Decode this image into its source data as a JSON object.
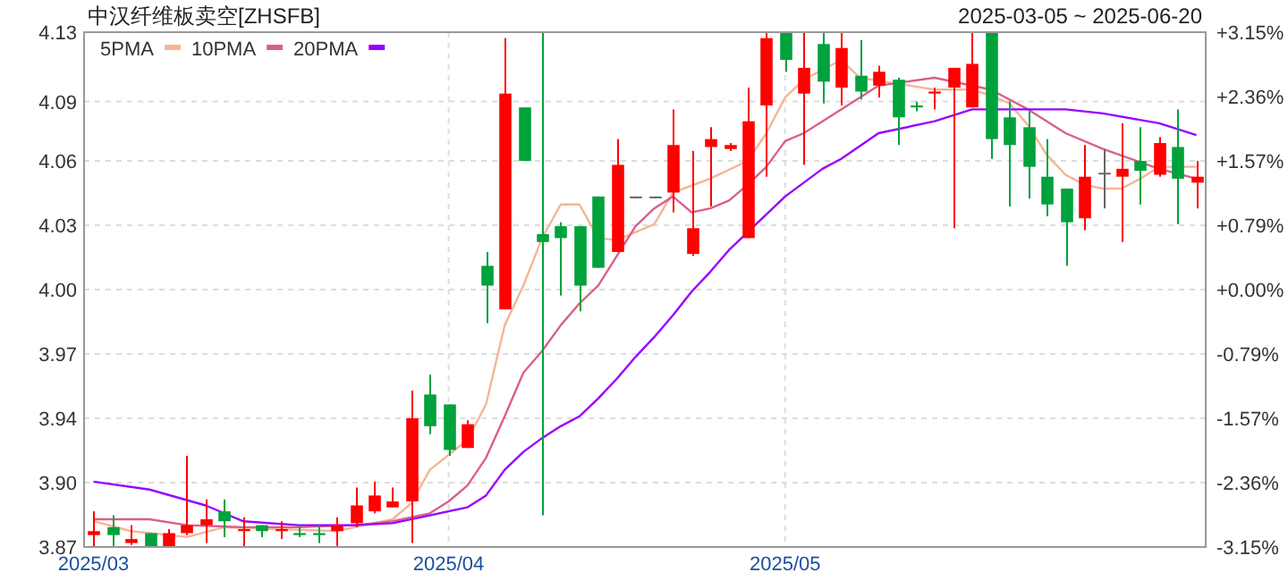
{
  "chart_data": {
    "type": "candlestick",
    "title": "中汉纤维板卖空[ZHSFB]",
    "subtitle": "2025-03-05 ~ 2025-06-20",
    "categories": [
      "2025/03",
      null,
      null,
      null,
      null,
      null,
      null,
      null,
      null,
      null,
      null,
      null,
      null,
      null,
      null,
      null,
      null,
      null,
      null,
      "2025/04",
      null,
      null,
      null,
      null,
      null,
      null,
      null,
      null,
      null,
      null,
      null,
      null,
      null,
      null,
      null,
      null,
      null,
      "2025/05",
      null,
      null,
      null,
      null,
      null,
      null,
      null,
      null,
      null,
      null,
      null,
      null,
      null,
      null,
      null,
      null,
      null,
      null,
      null,
      null,
      null,
      null
    ],
    "ohlc": [
      [
        3.876,
        3.888,
        3.87,
        3.878
      ],
      [
        3.88,
        3.886,
        3.87,
        3.876
      ],
      [
        3.872,
        3.881,
        3.871,
        3.874
      ],
      [
        3.877,
        3.877,
        3.87,
        3.87
      ],
      [
        3.87,
        3.879,
        3.87,
        3.877
      ],
      [
        3.877,
        3.916,
        3.876,
        3.881
      ],
      [
        3.881,
        3.894,
        3.872,
        3.884
      ],
      [
        3.888,
        3.894,
        3.875,
        3.883
      ],
      [
        3.878,
        3.885,
        3.87,
        3.879
      ],
      [
        3.881,
        3.881,
        3.875,
        3.878
      ],
      [
        3.878,
        3.883,
        3.874,
        3.879
      ],
      [
        3.877,
        3.881,
        3.875,
        3.876
      ],
      [
        3.877,
        3.881,
        3.872,
        3.876
      ],
      [
        3.878,
        3.885,
        3.87,
        3.881
      ],
      [
        3.882,
        3.9,
        3.88,
        3.891
      ],
      [
        3.888,
        3.903,
        3.887,
        3.896
      ],
      [
        3.89,
        3.9,
        3.89,
        3.893
      ],
      [
        3.893,
        3.949,
        3.872,
        3.935
      ],
      [
        3.947,
        3.957,
        3.927,
        3.931
      ],
      [
        3.942,
        3.942,
        3.916,
        3.919
      ],
      [
        3.92,
        3.934,
        3.92,
        3.932
      ],
      [
        4.012,
        4.019,
        3.983,
        4.002
      ],
      [
        3.99,
        4.127,
        3.99,
        4.099
      ],
      [
        4.092,
        4.092,
        4.065,
        4.065
      ],
      [
        4.028,
        4.13,
        3.886,
        4.024
      ],
      [
        4.032,
        4.034,
        3.997,
        4.026
      ],
      [
        4.032,
        4.032,
        3.989,
        4.002
      ],
      [
        4.047,
        4.047,
        4.011,
        4.011
      ],
      [
        4.019,
        4.076,
        4.019,
        4.063
      ],
      [
        4.047,
        4.047,
        4.047,
        4.047
      ],
      [
        4.047,
        4.047,
        4.047,
        4.047
      ],
      [
        4.049,
        4.091,
        4.039,
        4.073
      ],
      [
        4.018,
        4.07,
        4.017,
        4.031
      ],
      [
        4.072,
        4.082,
        4.042,
        4.076
      ],
      [
        4.071,
        4.074,
        4.07,
        4.073
      ],
      [
        4.026,
        4.102,
        4.026,
        4.085
      ],
      [
        4.093,
        4.13,
        4.057,
        4.127
      ],
      [
        4.13,
        4.13,
        4.11,
        4.116
      ],
      [
        4.099,
        4.13,
        4.063,
        4.112
      ],
      [
        4.124,
        4.13,
        4.094,
        4.105
      ],
      [
        4.102,
        4.13,
        4.093,
        4.122
      ],
      [
        4.108,
        4.126,
        4.096,
        4.1
      ],
      [
        4.103,
        4.113,
        4.097,
        4.11
      ],
      [
        4.106,
        4.107,
        4.073,
        4.087
      ],
      [
        4.093,
        4.095,
        4.09,
        4.092
      ],
      [
        4.099,
        4.102,
        4.091,
        4.1
      ],
      [
        4.102,
        4.112,
        4.031,
        4.112
      ],
      [
        4.092,
        4.13,
        4.092,
        4.114
      ],
      [
        4.13,
        4.13,
        4.066,
        4.076
      ],
      [
        4.087,
        4.095,
        4.042,
        4.073
      ],
      [
        4.082,
        4.09,
        4.046,
        4.062
      ],
      [
        4.057,
        4.076,
        4.037,
        4.043
      ],
      [
        4.051,
        4.051,
        4.012,
        4.034
      ],
      [
        4.036,
        4.073,
        4.03,
        4.057
      ],
      [
        4.059,
        4.071,
        4.041,
        4.059
      ],
      [
        4.057,
        4.084,
        4.024,
        4.061
      ],
      [
        4.065,
        4.082,
        4.043,
        4.06
      ],
      [
        4.058,
        4.077,
        4.057,
        4.074
      ],
      [
        4.072,
        4.091,
        4.033,
        4.056
      ],
      [
        4.054,
        4.065,
        4.041,
        4.057
      ]
    ],
    "colors": [
      "#ff0000",
      "#00a23c",
      "#ff0000",
      "#00a23c",
      "#ff0000",
      "#ff0000",
      "#ff0000",
      "#00a23c",
      "#ff0000",
      "#00a23c",
      "#ff0000",
      "#00a23c",
      "#00a23c",
      "#ff0000",
      "#ff0000",
      "#ff0000",
      "#ff0000",
      "#ff0000",
      "#00a23c",
      "#00a23c",
      "#ff0000",
      "#00a23c",
      "#ff0000",
      "#00a23c",
      "#00a23c",
      "#00a23c",
      "#00a23c",
      "#00a23c",
      "#ff0000",
      "#666666",
      "#666666",
      "#ff0000",
      "#ff0000",
      "#ff0000",
      "#ff0000",
      "#ff0000",
      "#ff0000",
      "#00a23c",
      "#ff0000",
      "#00a23c",
      "#ff0000",
      "#00a23c",
      "#ff0000",
      "#00a23c",
      "#00a23c",
      "#ff0000",
      "#ff0000",
      "#ff0000",
      "#00a23c",
      "#00a23c",
      "#00a23c",
      "#00a23c",
      "#00a23c",
      "#ff0000",
      "#666666",
      "#ff0000",
      "#00a23c",
      "#ff0000",
      "#00a23c",
      "#ff0000"
    ],
    "ylim": [
      3.87,
      4.13
    ],
    "yticks": [
      {
        "value": 3.87,
        "label": "3.87"
      },
      {
        "value": 3.9025,
        "label": "3.90"
      },
      {
        "value": 3.935,
        "label": "3.94"
      },
      {
        "value": 3.9675,
        "label": "3.97"
      },
      {
        "value": 4.0,
        "label": "4.00"
      },
      {
        "value": 4.0325,
        "label": "4.03"
      },
      {
        "value": 4.065,
        "label": "4.06"
      },
      {
        "value": 4.095,
        "label": "4.09"
      },
      {
        "value": 4.13,
        "label": "4.13"
      }
    ],
    "y2lim": [
      -3.15,
      3.15
    ],
    "y2ticks": [
      {
        "value": -3.15,
        "label": "-3.15%"
      },
      {
        "value": -2.3625,
        "label": "-2.36%"
      },
      {
        "value": -1.575,
        "label": "-1.57%"
      },
      {
        "value": -0.7875,
        "label": "-0.79%"
      },
      {
        "value": 0,
        "label": "+0.00%"
      },
      {
        "value": 0.7875,
        "label": "+0.79%"
      },
      {
        "value": 1.575,
        "label": "+1.57%"
      },
      {
        "value": 2.3625,
        "label": "+2.36%"
      },
      {
        "value": 3.15,
        "label": "+3.15%"
      }
    ],
    "grid": true,
    "legend": "top left",
    "series": [
      {
        "name": "5PMA",
        "type": "line",
        "color": "#f5b596",
        "values": [
          3.883,
          null,
          3.878,
          null,
          null,
          3.875,
          null,
          3.88,
          null,
          null,
          3.879,
          null,
          null,
          3.878,
          null,
          3.882,
          3.884,
          3.892,
          3.909,
          null,
          3.924,
          3.942,
          3.982,
          4.002,
          4.026,
          4.043,
          4.043,
          4.026,
          4.025,
          null,
          4.033,
          4.049,
          null,
          4.056,
          null,
          4.065,
          4.079,
          4.097,
          4.106,
          null,
          4.116,
          4.107,
          null,
          4.104,
          null,
          4.101,
          null,
          4.101,
          4.098,
          4.094,
          4.083,
          4.068,
          4.058,
          4.053,
          4.051,
          4.051,
          4.056,
          4.062,
          null,
          4.062
        ]
      },
      {
        "name": "10PMA",
        "type": "line",
        "color": "#d9608a",
        "values": [
          3.884,
          null,
          null,
          3.884,
          null,
          3.881,
          null,
          null,
          3.88,
          null,
          null,
          3.88,
          null,
          null,
          3.881,
          null,
          3.883,
          null,
          3.887,
          3.893,
          3.901,
          3.915,
          3.936,
          3.958,
          3.969,
          3.982,
          3.993,
          4.002,
          4.017,
          4.032,
          4.041,
          4.047,
          4.039,
          4.041,
          4.045,
          4.053,
          4.062,
          4.075,
          4.079,
          4.085,
          4.091,
          null,
          4.103,
          null,
          null,
          4.107,
          null,
          null,
          4.101,
          null,
          4.091,
          null,
          4.079,
          null,
          4.071,
          null,
          null,
          4.061,
          null,
          4.056
        ]
      },
      {
        "name": "20PMA",
        "type": "line",
        "color": "#9900ff",
        "values": [
          3.903,
          null,
          null,
          3.899,
          null,
          null,
          3.891,
          null,
          3.883,
          null,
          null,
          3.881,
          null,
          null,
          3.881,
          null,
          3.882,
          null,
          3.886,
          null,
          3.89,
          3.896,
          3.909,
          3.918,
          3.925,
          3.931,
          3.936,
          3.945,
          3.955,
          3.966,
          3.976,
          3.987,
          3.999,
          4.009,
          4.02,
          4.029,
          4.038,
          4.047,
          4.054,
          4.061,
          4.066,
          null,
          4.079,
          null,
          null,
          4.085,
          null,
          4.091,
          null,
          null,
          4.091,
          null,
          4.091,
          null,
          4.089,
          null,
          null,
          4.084,
          null,
          4.078
        ]
      }
    ]
  }
}
